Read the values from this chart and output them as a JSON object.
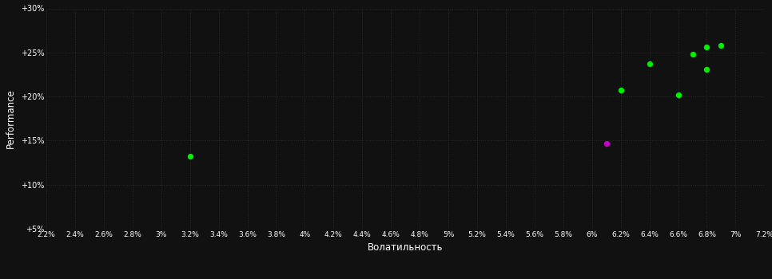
{
  "background_color": "#111111",
  "grid_color": "#2a2a2a",
  "text_color": "#ffffff",
  "xlabel": "Волатильность",
  "ylabel": "Performance",
  "xlim": [
    0.022,
    0.072
  ],
  "ylim": [
    0.05,
    0.3
  ],
  "xticks": [
    0.022,
    0.024,
    0.026,
    0.028,
    0.03,
    0.032,
    0.034,
    0.036,
    0.038,
    0.04,
    0.042,
    0.044,
    0.046,
    0.048,
    0.05,
    0.052,
    0.054,
    0.056,
    0.058,
    0.06,
    0.062,
    0.064,
    0.066,
    0.068,
    0.07,
    0.072
  ],
  "yticks": [
    0.05,
    0.1,
    0.15,
    0.2,
    0.25,
    0.3
  ],
  "ytick_labels": [
    "+5%",
    "+10%",
    "+15%",
    "+20%",
    "+25%",
    "+30%"
  ],
  "xtick_labels": [
    "2.2%",
    "2.4%",
    "2.6%",
    "2.8%",
    "3%",
    "3.2%",
    "3.4%",
    "3.6%",
    "3.8%",
    "4%",
    "4.2%",
    "4.4%",
    "4.6%",
    "4.8%",
    "5%",
    "5.2%",
    "5.4%",
    "5.6%",
    "5.8%",
    "6%",
    "6.2%",
    "6.4%",
    "6.6%",
    "6.8%",
    "7%",
    "7.2%"
  ],
  "green_points": [
    [
      0.032,
      0.132
    ],
    [
      0.062,
      0.207
    ],
    [
      0.064,
      0.237
    ],
    [
      0.066,
      0.202
    ],
    [
      0.067,
      0.248
    ],
    [
      0.068,
      0.256
    ],
    [
      0.068,
      0.231
    ],
    [
      0.069,
      0.258
    ]
  ],
  "magenta_points": [
    [
      0.061,
      0.147
    ]
  ],
  "point_size": 28,
  "green_color": "#00ee00",
  "magenta_color": "#cc00cc"
}
